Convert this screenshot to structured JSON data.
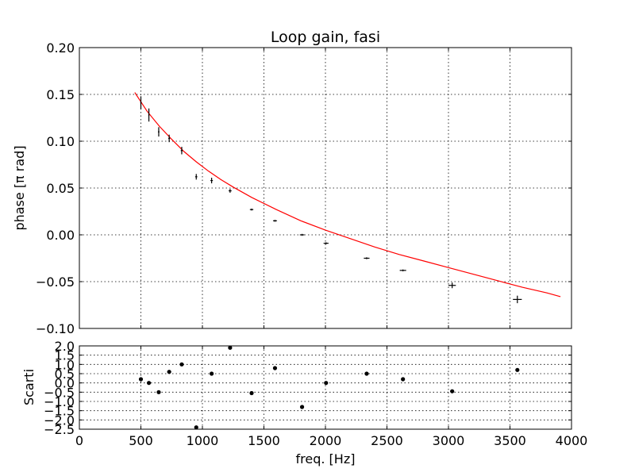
{
  "chart_data": [
    {
      "type": "line",
      "title": "Loop gain, fasi",
      "ylabel": "phase [π rad]",
      "xlim": [
        0,
        4000
      ],
      "ylim": [
        -0.1,
        0.2
      ],
      "yticks": [
        "−0.10",
        "−0.05",
        "0.00",
        "0.05",
        "0.10",
        "0.15",
        "0.20"
      ],
      "ytick_values": [
        -0.1,
        -0.05,
        0.0,
        0.05,
        0.1,
        0.15,
        0.2
      ],
      "grid": true,
      "fit_color": "#ff0000",
      "fit_x": [
        450,
        550,
        650,
        750,
        850,
        950,
        1050,
        1150,
        1250,
        1400,
        1600,
        1800,
        2000,
        2200,
        2400,
        2600,
        2800,
        3000,
        3200,
        3400,
        3600,
        3800,
        3910
      ],
      "fit_y": [
        0.152,
        0.132,
        0.116,
        0.102,
        0.089,
        0.078,
        0.068,
        0.059,
        0.051,
        0.04,
        0.027,
        0.015,
        0.005,
        -0.004,
        -0.013,
        -0.021,
        -0.028,
        -0.035,
        -0.042,
        -0.049,
        -0.056,
        -0.062,
        -0.066
      ],
      "points": [
        {
          "x": 500,
          "y": 0.141,
          "yerr": 0.007,
          "xerr": 5
        },
        {
          "x": 565,
          "y": 0.128,
          "yerr": 0.007,
          "xerr": 5
        },
        {
          "x": 645,
          "y": 0.11,
          "yerr": 0.005,
          "xerr": 6
        },
        {
          "x": 730,
          "y": 0.103,
          "yerr": 0.004,
          "xerr": 7
        },
        {
          "x": 832,
          "y": 0.09,
          "yerr": 0.004,
          "xerr": 8
        },
        {
          "x": 950,
          "y": 0.062,
          "yerr": 0.003,
          "xerr": 9
        },
        {
          "x": 1075,
          "y": 0.058,
          "yerr": 0.003,
          "xerr": 10
        },
        {
          "x": 1225,
          "y": 0.047,
          "yerr": 0.002,
          "xerr": 12
        },
        {
          "x": 1400,
          "y": 0.027,
          "yerr": 0.001,
          "xerr": 14
        },
        {
          "x": 1590,
          "y": 0.015,
          "yerr": 0.001,
          "xerr": 16
        },
        {
          "x": 1810,
          "y": 0.0,
          "yerr": 0.001,
          "xerr": 18
        },
        {
          "x": 2005,
          "y": -0.009,
          "yerr": 0.001,
          "xerr": 20
        },
        {
          "x": 2335,
          "y": -0.025,
          "yerr": 0.001,
          "xerr": 23
        },
        {
          "x": 2630,
          "y": -0.038,
          "yerr": 0.001,
          "xerr": 26
        },
        {
          "x": 3030,
          "y": -0.054,
          "yerr": 0.003,
          "xerr": 30
        },
        {
          "x": 3560,
          "y": -0.069,
          "yerr": 0.004,
          "xerr": 36
        }
      ]
    },
    {
      "type": "scatter",
      "xlabel": "freq. [Hz]",
      "ylabel": "Scarti",
      "xlim": [
        0,
        4000
      ],
      "ylim": [
        -2.5,
        2.0
      ],
      "xticks": [
        "0",
        "500",
        "1000",
        "1500",
        "2000",
        "2500",
        "3000",
        "3500",
        "4000"
      ],
      "xtick_values": [
        0,
        500,
        1000,
        1500,
        2000,
        2500,
        3000,
        3500,
        4000
      ],
      "yticks": [
        "−2.5",
        "−2.0",
        "−1.5",
        "−1.0",
        "−0.5",
        "0.0",
        "0.5",
        "1.0",
        "1.5",
        "2.0"
      ],
      "ytick_values": [
        -2.5,
        -2.0,
        -1.5,
        -1.0,
        -0.5,
        0.0,
        0.5,
        1.0,
        1.5,
        2.0
      ],
      "grid": true,
      "x": [
        500,
        565,
        645,
        730,
        832,
        950,
        1075,
        1225,
        1400,
        1590,
        1810,
        2005,
        2335,
        2630,
        3030,
        3560
      ],
      "y": [
        0.2,
        0.0,
        -0.5,
        0.6,
        1.0,
        -2.4,
        0.5,
        1.9,
        -0.55,
        0.8,
        -1.3,
        0.0,
        0.5,
        0.2,
        -0.45,
        0.7
      ]
    }
  ]
}
